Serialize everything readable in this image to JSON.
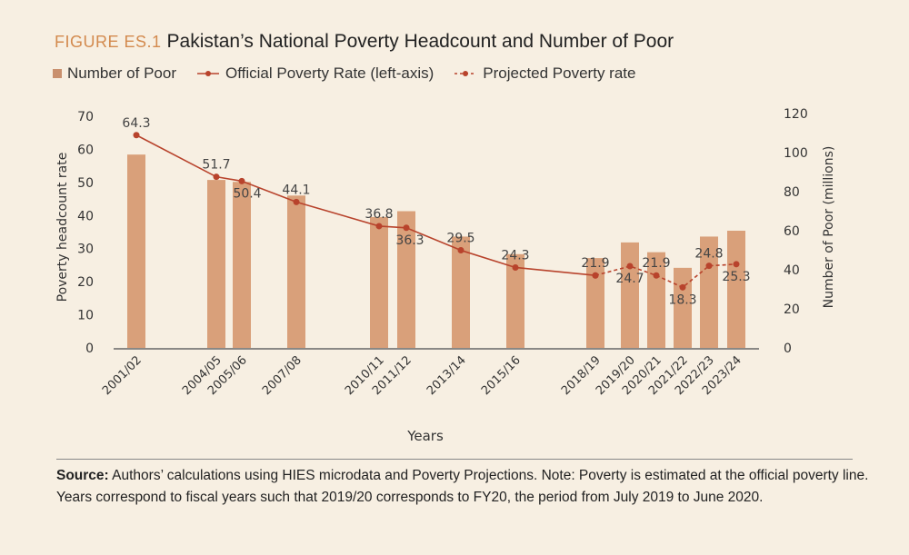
{
  "figure": {
    "label": "FIGURE ES.1",
    "title": "Pakistan’s National Poverty Headcount and Number of Poor"
  },
  "legend": [
    {
      "name": "Number of Poor",
      "marker": "square"
    },
    {
      "name": "Official Poverty Rate (left-axis)",
      "marker": "line-dot"
    },
    {
      "name": "Projected Poverty rate",
      "marker": "dashed-line-dot"
    }
  ],
  "colors": {
    "bar": "#d9a07a",
    "line": "#b8432c",
    "text": "#333333",
    "background": "#f7efe2"
  },
  "chart_data": {
    "type": "bar+line",
    "xlabel": "Years",
    "ylabel_left": "Poverty headcount rate",
    "ylabel_right": "Number of Poor (millions)",
    "ylim_left": [
      0,
      70
    ],
    "yticks_left": [
      0,
      10,
      20,
      30,
      40,
      50,
      60,
      70
    ],
    "ylim_right": [
      0,
      120
    ],
    "yticks_right": [
      0,
      20,
      40,
      60,
      80,
      100,
      120
    ],
    "grid": false,
    "legend_placement": "top-left",
    "categories": [
      "2001/02",
      "2004/05",
      "2005/06",
      "2007/08",
      "2010/11",
      "2011/12",
      "2013/14",
      "2015/16",
      "2018/19",
      "2019/20",
      "2020/21",
      "2021/22",
      "2022/23",
      "2023/24"
    ],
    "series": [
      {
        "name": "Number of Poor",
        "type": "bar",
        "axis": "right",
        "values": [
          99,
          86,
          85,
          78,
          67,
          70,
          57,
          48,
          46,
          54,
          49,
          41,
          57,
          60
        ]
      },
      {
        "name": "Official Poverty Rate (left-axis)",
        "type": "line",
        "axis": "left",
        "values": [
          64.3,
          51.7,
          50.4,
          44.1,
          36.8,
          36.3,
          29.5,
          24.3,
          21.9,
          null,
          null,
          null,
          null,
          null
        ]
      },
      {
        "name": "Projected Poverty rate",
        "type": "dashed-line",
        "axis": "left",
        "values": [
          null,
          null,
          null,
          null,
          null,
          null,
          null,
          null,
          21.9,
          24.7,
          21.9,
          18.3,
          24.8,
          25.3
        ]
      }
    ],
    "data_labels": [
      "64.3",
      "51.7",
      "50.4",
      "44.1",
      "36.8",
      "36.3",
      "29.5",
      "24.3",
      "21.9",
      "24.7",
      "21.9",
      "18.3",
      "24.8",
      "25.3"
    ]
  },
  "source": {
    "label": "Source:",
    "text": "Authors’ calculations using HIES microdata and Poverty Projections. Note: Poverty is estimated at the official poverty line. Years correspond to fiscal years such that 2019/20 corresponds to FY20, the period from July 2019 to June 2020."
  }
}
